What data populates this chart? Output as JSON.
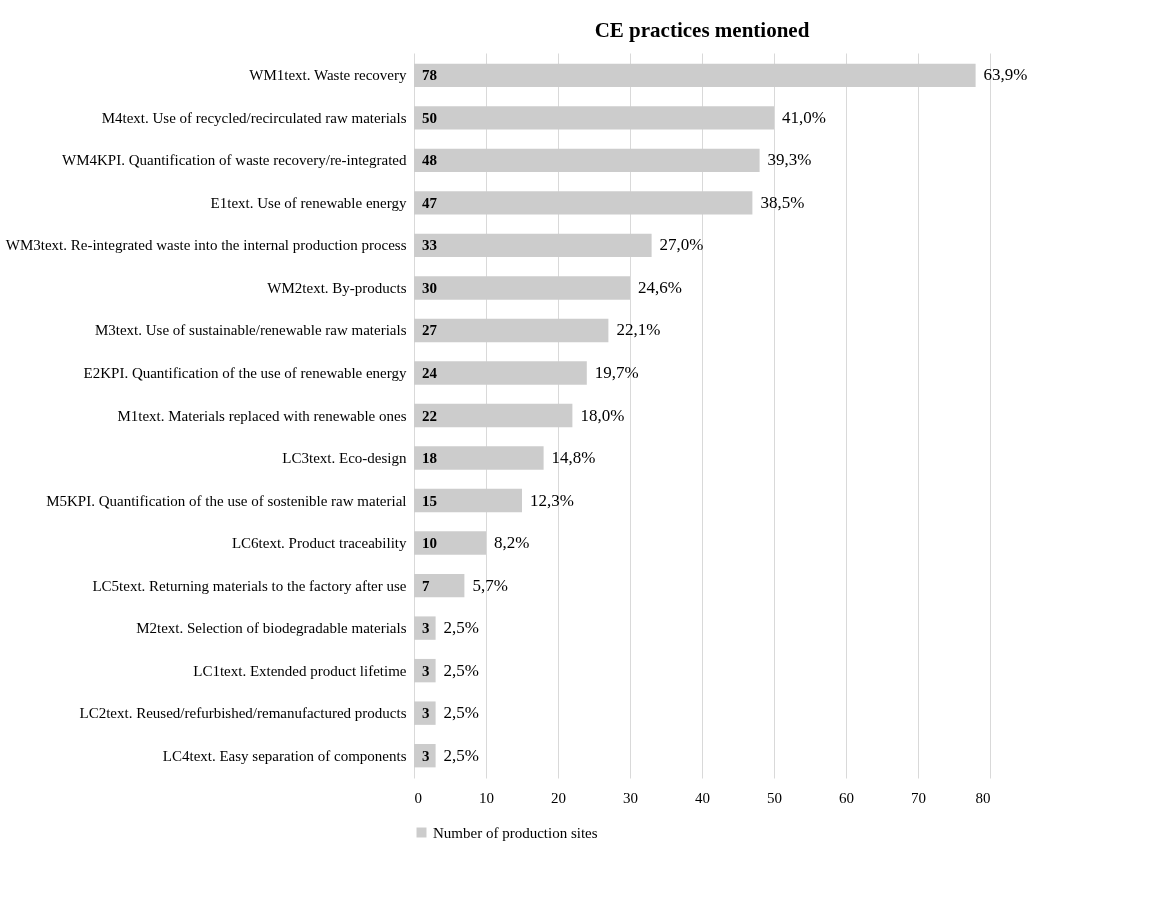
{
  "chart_data": {
    "type": "bar",
    "orientation": "horizontal",
    "title": "CE practices mentioned",
    "categories": [
      "WM1text. Waste recovery",
      "M4text. Use of recycled/recirculated raw materials",
      "WM4KPI. Quantification of waste recovery/re-integrated",
      "E1text. Use of renewable energy",
      "WM3text. Re-integrated waste into the internal production process",
      "WM2text. By-products",
      "M3text. Use of sustainable/renewable raw materials",
      "E2KPI. Quantification of the use of renewable energy",
      "M1text. Materials replaced with renewable ones",
      "LC3text. Eco-design",
      "M5KPI. Quantification of the use of sostenible raw material",
      "LC6text. Product traceability",
      "LC5text. Returning materials to the factory after use",
      "M2text. Selection of biodegradable materials",
      "LC1text. Extended product lifetime",
      "LC2text. Reused/refurbished/remanufactured products",
      "LC4text. Easy separation of components"
    ],
    "series": [
      {
        "name": "Number of production sites",
        "color": "#cccccc",
        "values": [
          78,
          50,
          48,
          47,
          33,
          30,
          27,
          24,
          22,
          18,
          15,
          10,
          7,
          3,
          3,
          3,
          3
        ]
      }
    ],
    "annotations": [
      {
        "text": "63,9%",
        "x": 78,
        "y": "WM1text. Waste recovery"
      },
      {
        "text": "41,0%",
        "x": 50,
        "y": "M4text. Use of recycled/recirculated raw materials"
      },
      {
        "text": "39,3%",
        "x": 48,
        "y": "WM4KPI. Quantification of waste recovery/re-integrated"
      },
      {
        "text": "38,5%",
        "x": 47,
        "y": "E1text. Use of renewable energy"
      },
      {
        "text": "27,0%",
        "x": 33,
        "y": "WM3text. Re-integrated waste into the internal production process"
      },
      {
        "text": "24,6%",
        "x": 30,
        "y": "WM2text. By-products"
      },
      {
        "text": "22,1%",
        "x": 27,
        "y": "M3text. Use of sustainable/renewable raw materials"
      },
      {
        "text": "19,7%",
        "x": 24,
        "y": "E2KPI. Quantification of the use of renewable energy"
      },
      {
        "text": "18,0%",
        "x": 22,
        "y": "M1text. Materials replaced with renewable ones"
      },
      {
        "text": "14,8%",
        "x": 18,
        "y": "LC3text. Eco-design"
      },
      {
        "text": "12,3%",
        "x": 15,
        "y": "M5KPI. Quantification of the use of sostenible raw material"
      },
      {
        "text": "8,2%",
        "x": 10,
        "y": "LC6text. Product traceability"
      },
      {
        "text": "5,7%",
        "x": 7,
        "y": "LC5text. Returning materials to the factory after use"
      },
      {
        "text": "2,5%",
        "x": 3,
        "y": "M2text. Selection of biodegradable materials"
      },
      {
        "text": "2,5%",
        "x": 3,
        "y": "LC1text. Extended product lifetime"
      },
      {
        "text": "2,5%",
        "x": 3,
        "y": "LC2text. Reused/refurbished/remanufactured products"
      },
      {
        "text": "2,5%",
        "x": 3,
        "y": "LC4text. Easy separation of components"
      }
    ],
    "data_labels": true,
    "xlim": [
      0,
      80
    ],
    "xticks": [
      0,
      10,
      20,
      30,
      40,
      50,
      60,
      70,
      80
    ],
    "grid": "x",
    "legend": "bottom left"
  }
}
